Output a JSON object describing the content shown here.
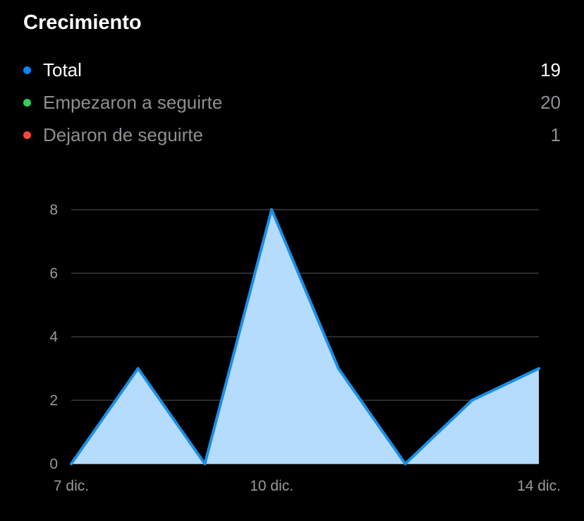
{
  "header": {
    "title": "Crecimiento"
  },
  "legend": [
    {
      "label": "Total",
      "value": "19",
      "color": "#0a84ff",
      "primary": true
    },
    {
      "label": "Empezaron a seguirte",
      "value": "20",
      "color": "#30d158",
      "primary": false
    },
    {
      "label": "Dejaron de seguirte",
      "value": "1",
      "color": "#ff453a",
      "primary": false
    }
  ],
  "chart_data": {
    "type": "area",
    "x": [
      0,
      1,
      2,
      3,
      4,
      5,
      6,
      7
    ],
    "x_tick_labels": [
      {
        "x": 0,
        "label": "7 dic."
      },
      {
        "x": 3,
        "label": "10 dic."
      },
      {
        "x": 7,
        "label": "14 dic."
      }
    ],
    "y_ticks": [
      0,
      2,
      4,
      6,
      8
    ],
    "ylim": [
      0,
      8
    ],
    "series": [
      {
        "values": [
          0,
          3,
          0,
          8,
          3,
          0,
          2,
          3
        ]
      }
    ],
    "line_color": "#1a8fe8",
    "fill_color": "#b5dbfd",
    "grid": true
  }
}
